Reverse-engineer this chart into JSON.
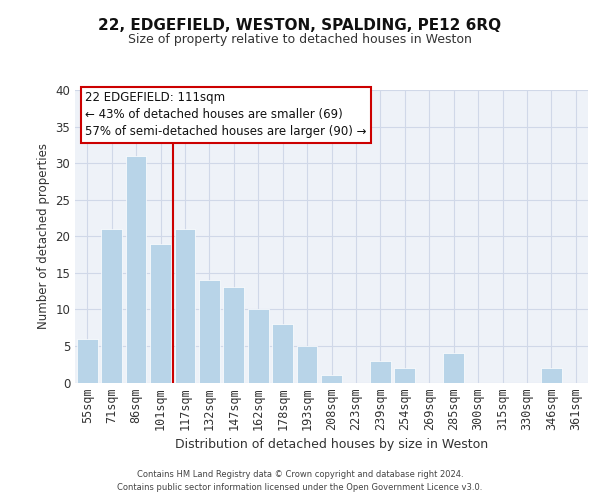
{
  "title": "22, EDGEFIELD, WESTON, SPALDING, PE12 6RQ",
  "subtitle": "Size of property relative to detached houses in Weston",
  "xlabel": "Distribution of detached houses by size in Weston",
  "ylabel": "Number of detached properties",
  "categories": [
    "55sqm",
    "71sqm",
    "86sqm",
    "101sqm",
    "117sqm",
    "132sqm",
    "147sqm",
    "162sqm",
    "178sqm",
    "193sqm",
    "208sqm",
    "223sqm",
    "239sqm",
    "254sqm",
    "269sqm",
    "285sqm",
    "300sqm",
    "315sqm",
    "330sqm",
    "346sqm",
    "361sqm"
  ],
  "values": [
    6,
    21,
    31,
    19,
    21,
    14,
    13,
    10,
    8,
    5,
    1,
    0,
    3,
    2,
    0,
    4,
    0,
    0,
    0,
    2,
    0
  ],
  "bar_color": "#b8d4e8",
  "bar_edge_color": "#ffffff",
  "subject_line_color": "#cc0000",
  "annotation_text": "22 EDGEFIELD: 111sqm\n← 43% of detached houses are smaller (69)\n57% of semi-detached houses are larger (90) →",
  "annotation_box_edge_color": "#cc0000",
  "annotation_box_face_color": "#ffffff",
  "ylim": [
    0,
    40
  ],
  "yticks": [
    0,
    5,
    10,
    15,
    20,
    25,
    30,
    35,
    40
  ],
  "grid_color": "#d0d8e8",
  "background_color": "#eef2f8",
  "footer_line1": "Contains HM Land Registry data © Crown copyright and database right 2024.",
  "footer_line2": "Contains public sector information licensed under the Open Government Licence v3.0."
}
